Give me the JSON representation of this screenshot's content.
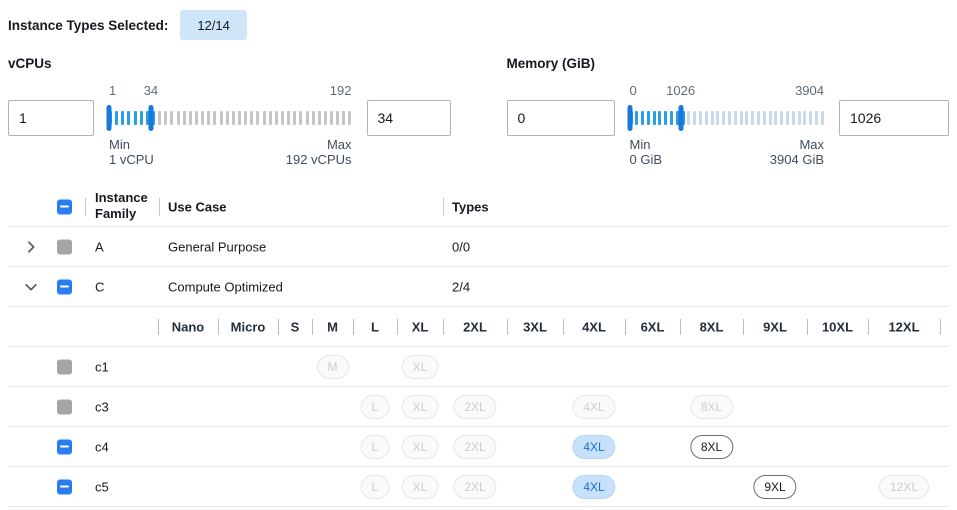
{
  "header": {
    "label": "Instance Types Selected:",
    "badge": "12/14"
  },
  "filters": [
    {
      "title": "vCPUs",
      "min_value": "1",
      "max_value": "34",
      "slider": {
        "start_label": "1",
        "handle_label": "34",
        "end_label": "192",
        "handle_pct": 17.3,
        "total_ticks": 40,
        "active_ticks": 7,
        "inactive_tick_color": "#c6c6c6"
      },
      "min_caption": "Min",
      "min_detail": "1 vCPU",
      "max_caption": "Max",
      "max_detail": "192 vCPUs"
    },
    {
      "title": "Memory (GiB)",
      "min_value": "0",
      "max_value": "1026",
      "slider": {
        "start_label": "0",
        "handle_label": "1026",
        "end_label": "3904",
        "handle_pct": 26.3,
        "total_ticks": 34,
        "active_ticks": 9,
        "inactive_tick_color": "#ccd9ec"
      },
      "min_caption": "Min",
      "min_detail": "0 GiB",
      "max_caption": "Max",
      "max_detail": "3904 GiB"
    }
  ],
  "table": {
    "header": {
      "select_all_checkbox_state": "indeterminate",
      "family_label": "Instance Family",
      "use_case_label": "Use Case",
      "types_label": "Types"
    },
    "family_rows": [
      {
        "family": "A",
        "use_case": "General Purpose",
        "types": "0/0",
        "expanded": false,
        "checkbox": "disabled"
      },
      {
        "family": "C",
        "use_case": "Compute Optimized",
        "types": "2/4",
        "expanded": true,
        "checkbox": "indeterminate"
      }
    ],
    "sizes": [
      "Nano",
      "Micro",
      "S",
      "M",
      "L",
      "XL",
      "2XL",
      "3XL",
      "4XL",
      "6XL",
      "8XL",
      "9XL",
      "10XL",
      "12XL"
    ],
    "instance_rows": [
      {
        "name": "c1",
        "checkbox": "disabled",
        "pills": {
          "M": "disabled",
          "XL": "disabled"
        }
      },
      {
        "name": "c3",
        "checkbox": "disabled",
        "pills": {
          "L": "disabled",
          "XL": "disabled",
          "2XL": "disabled",
          "4XL": "disabled",
          "8XL": "disabled"
        }
      },
      {
        "name": "c4",
        "checkbox": "indeterminate",
        "pills": {
          "L": "disabled",
          "XL": "disabled",
          "2XL": "disabled",
          "4XL": "selected",
          "8XL": "available"
        }
      },
      {
        "name": "c5",
        "checkbox": "indeterminate",
        "pills": {
          "L": "disabled",
          "XL": "disabled",
          "2XL": "disabled",
          "4XL": "selected",
          "9XL": "available",
          "12XL": "disabled"
        }
      }
    ]
  },
  "colors": {
    "accent_blue": "#2b7cee",
    "slider_handle": "#1878dc",
    "slider_active_tick": "#29a0e5",
    "badge_bg": "#cfe5fa",
    "selected_pill_bg": "#c7e1fa",
    "selected_pill_text": "#1b6ed2",
    "disabled_checkbox_gray": "#a5a5a5"
  }
}
